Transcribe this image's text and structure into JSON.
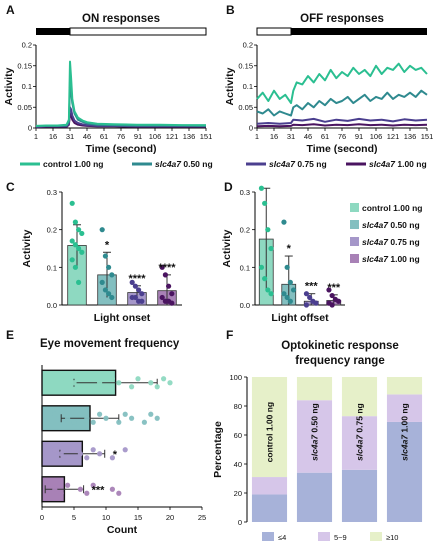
{
  "colors": {
    "control": "#2bbf91",
    "s050": "#2f8a8f",
    "s075": "#4b3f8f",
    "s100": "#4a1460",
    "control_light": "#8ed9c1",
    "s050_light": "#83bfc0",
    "s075_light": "#a597c9",
    "s100_light": "#a881b6",
    "f_low": "#a7b2d9",
    "f_mid": "#d6c6e9",
    "f_high": "#e6f0c9"
  },
  "legend_top": [
    {
      "key": "control",
      "name": "control",
      "dose": "1.00 ng"
    },
    {
      "key": "s050",
      "name": "slc4a7",
      "dose": "0.50 ng"
    },
    {
      "key": "s075",
      "name": "slc4a7",
      "dose": "0.75 ng"
    },
    {
      "key": "s100",
      "name": "slc4a7",
      "dose": "1.00 ng"
    }
  ],
  "legend_d": [
    {
      "key": "control_light",
      "name": "control",
      "dose": "1.00 ng"
    },
    {
      "key": "s050_light",
      "name": "slc4a7",
      "dose": "0.50 ng"
    },
    {
      "key": "s075_light",
      "name": "slc4a7",
      "dose": "0.75 ng"
    },
    {
      "key": "s100_light",
      "name": "slc4a7",
      "dose": "1.00 ng"
    }
  ],
  "chart_data": [
    {
      "panel": "A",
      "type": "line",
      "title": "ON responses",
      "xlabel": "Time (second)",
      "ylabel": "Activity",
      "xticks": [
        1,
        16,
        31,
        46,
        61,
        76,
        91,
        106,
        121,
        136,
        151
      ],
      "xlim": [
        1,
        151
      ],
      "ylim": [
        0,
        0.2
      ],
      "yticks": [
        0,
        0.05,
        0.1,
        0.15,
        0.2
      ],
      "ytick_labels": [
        "0",
        "0.05",
        "0.1",
        "0.15",
        "0.2"
      ],
      "stimulus_bar": {
        "dark_until": 31
      },
      "series": [
        {
          "key": "control",
          "name": "control 1.00 ng",
          "x": [
            1,
            10,
            20,
            28,
            30,
            31,
            32,
            33,
            35,
            38,
            42,
            46,
            55,
            70,
            90,
            110,
            130,
            151
          ],
          "y": [
            0.005,
            0.006,
            0.006,
            0.008,
            0.02,
            0.16,
            0.12,
            0.07,
            0.04,
            0.025,
            0.018,
            0.014,
            0.01,
            0.009,
            0.008,
            0.008,
            0.007,
            0.007
          ]
        },
        {
          "key": "s050",
          "name": "slc4a7 0.50 ng",
          "x": [
            1,
            10,
            20,
            28,
            30,
            31,
            32,
            33,
            35,
            38,
            42,
            46,
            55,
            70,
            90,
            110,
            130,
            151
          ],
          "y": [
            0.004,
            0.005,
            0.005,
            0.006,
            0.015,
            0.1,
            0.09,
            0.06,
            0.035,
            0.02,
            0.015,
            0.011,
            0.008,
            0.007,
            0.006,
            0.006,
            0.006,
            0.005
          ]
        },
        {
          "key": "s075",
          "name": "slc4a7 0.75 ng",
          "x": [
            1,
            10,
            20,
            28,
            30,
            31,
            32,
            33,
            35,
            38,
            42,
            46,
            55,
            70,
            90,
            110,
            130,
            151
          ],
          "y": [
            0.003,
            0.004,
            0.004,
            0.004,
            0.01,
            0.05,
            0.045,
            0.03,
            0.018,
            0.012,
            0.009,
            0.007,
            0.005,
            0.005,
            0.004,
            0.004,
            0.004,
            0.004
          ]
        },
        {
          "key": "s100",
          "name": "slc4a7 1.00 ng",
          "x": [
            1,
            10,
            20,
            28,
            30,
            31,
            32,
            33,
            35,
            38,
            42,
            46,
            55,
            70,
            90,
            110,
            130,
            151
          ],
          "y": [
            0.002,
            0.003,
            0.003,
            0.003,
            0.008,
            0.035,
            0.03,
            0.02,
            0.012,
            0.008,
            0.006,
            0.005,
            0.004,
            0.004,
            0.003,
            0.003,
            0.003,
            0.003
          ]
        }
      ]
    },
    {
      "panel": "B",
      "type": "line",
      "title": "OFF responses",
      "xlabel": "Time (second)",
      "ylabel": "Activity",
      "xticks": [
        1,
        16,
        31,
        46,
        61,
        76,
        91,
        106,
        121,
        136,
        151
      ],
      "xlim": [
        1,
        151
      ],
      "ylim": [
        0,
        0.2
      ],
      "yticks": [
        0,
        0.05,
        0.1,
        0.15,
        0.2
      ],
      "ytick_labels": [
        "0",
        "0.05",
        "0.1",
        "0.15",
        "0.2"
      ],
      "stimulus_bar": {
        "light_until": 31
      },
      "series": [
        {
          "key": "control",
          "name": "control 1.00 ng",
          "x": [
            1,
            6,
            11,
            16,
            21,
            26,
            31,
            33,
            36,
            41,
            46,
            51,
            56,
            61,
            66,
            71,
            76,
            81,
            86,
            91,
            96,
            101,
            106,
            111,
            116,
            121,
            126,
            131,
            136,
            141,
            146,
            151
          ],
          "y": [
            0.07,
            0.085,
            0.065,
            0.09,
            0.07,
            0.08,
            0.06,
            0.09,
            0.11,
            0.105,
            0.125,
            0.11,
            0.13,
            0.115,
            0.14,
            0.12,
            0.135,
            0.125,
            0.145,
            0.13,
            0.14,
            0.125,
            0.15,
            0.13,
            0.145,
            0.14,
            0.155,
            0.135,
            0.15,
            0.14,
            0.145,
            0.13
          ]
        },
        {
          "key": "s050",
          "name": "slc4a7 0.50 ng",
          "x": [
            1,
            6,
            11,
            16,
            21,
            26,
            31,
            33,
            36,
            41,
            46,
            51,
            56,
            61,
            66,
            71,
            76,
            81,
            86,
            91,
            96,
            101,
            106,
            111,
            116,
            121,
            126,
            131,
            136,
            141,
            146,
            151
          ],
          "y": [
            0.04,
            0.035,
            0.045,
            0.03,
            0.04,
            0.035,
            0.03,
            0.05,
            0.055,
            0.045,
            0.06,
            0.05,
            0.065,
            0.055,
            0.07,
            0.06,
            0.065,
            0.075,
            0.06,
            0.07,
            0.08,
            0.065,
            0.075,
            0.07,
            0.085,
            0.07,
            0.08,
            0.075,
            0.085,
            0.075,
            0.09,
            0.08
          ]
        },
        {
          "key": "s075",
          "name": "slc4a7 0.75 ng",
          "x": [
            1,
            11,
            21,
            31,
            33,
            41,
            51,
            61,
            71,
            81,
            91,
            101,
            111,
            121,
            131,
            141,
            151
          ],
          "y": [
            0.01,
            0.012,
            0.01,
            0.012,
            0.02,
            0.018,
            0.022,
            0.015,
            0.02,
            0.017,
            0.022,
            0.018,
            0.02,
            0.016,
            0.021,
            0.018,
            0.02
          ]
        },
        {
          "key": "s100",
          "name": "slc4a7 1.00 ng",
          "x": [
            1,
            11,
            21,
            31,
            33,
            41,
            51,
            61,
            71,
            81,
            91,
            101,
            111,
            121,
            131,
            141,
            151
          ],
          "y": [
            0.004,
            0.005,
            0.004,
            0.005,
            0.008,
            0.007,
            0.009,
            0.006,
            0.008,
            0.007,
            0.009,
            0.007,
            0.008,
            0.006,
            0.008,
            0.007,
            0.008
          ]
        }
      ]
    },
    {
      "panel": "C",
      "type": "bar",
      "xlabel": "Light onset",
      "ylabel": "Activity",
      "ylim": [
        0,
        0.3
      ],
      "yticks": [
        0,
        0.1,
        0.2,
        0.3
      ],
      "ytick_labels": [
        "0.0",
        "0.1",
        "0.2",
        "0.3"
      ],
      "categories": [
        "control 1.00 ng",
        "slc4a7 0.50 ng",
        "slc4a7 0.75 ng",
        "slc4a7 1.00 ng"
      ],
      "values": [
        0.158,
        0.08,
        0.033,
        0.038
      ],
      "errors": [
        0.055,
        0.06,
        0.018,
        0.042
      ],
      "significance": [
        "",
        "*",
        "****",
        "****"
      ],
      "points": [
        [
          0.27,
          0.22,
          0.2,
          0.19,
          0.17,
          0.16,
          0.15,
          0.14,
          0.12,
          0.1,
          0.06
        ],
        [
          0.2,
          0.13,
          0.1,
          0.08,
          0.06,
          0.04,
          0.03,
          0.02
        ],
        [
          0.06,
          0.05,
          0.04,
          0.03,
          0.02,
          0.02,
          0.01,
          0.01
        ],
        [
          0.1,
          0.08,
          0.05,
          0.03,
          0.02,
          0.01,
          0.01,
          0.005
        ]
      ]
    },
    {
      "panel": "D",
      "type": "bar",
      "xlabel": "Light offset",
      "ylabel": "Activity",
      "ylim": [
        0,
        0.3
      ],
      "yticks": [
        0,
        0.1,
        0.2,
        0.3
      ],
      "ytick_labels": [
        "0.0",
        "0.1",
        "0.2",
        "0.3"
      ],
      "categories": [
        "control 1.00 ng",
        "slc4a7 0.50 ng",
        "slc4a7 0.75 ng",
        "slc4a7 1.00 ng"
      ],
      "values": [
        0.175,
        0.055,
        0.01,
        0.012
      ],
      "errors": [
        0.135,
        0.075,
        0.02,
        0.015
      ],
      "significance": [
        "",
        "*",
        "***",
        "***"
      ],
      "points": [
        [
          0.31,
          0.27,
          0.2,
          0.15,
          0.1,
          0.07,
          0.04,
          0.03
        ],
        [
          0.22,
          0.1,
          0.06,
          0.04,
          0.03,
          0.02,
          0.01
        ],
        [
          0.03,
          0.02,
          0.01,
          0.005,
          0.0
        ],
        [
          0.04,
          0.025,
          0.015,
          0.01,
          0.005,
          0.0
        ]
      ]
    },
    {
      "panel": "E",
      "type": "bar",
      "orientation": "horizontal",
      "title": "Eye movement frequency",
      "xlabel": "Count",
      "xlim": [
        0,
        25
      ],
      "xticks": [
        0,
        5,
        10,
        15,
        20,
        25
      ],
      "categories": [
        "control 1.00 ng",
        "slc4a7 0.50 ng",
        "slc4a7 0.75 ng",
        "slc4a7 1.00 ng"
      ],
      "values": [
        11.5,
        7.5,
        6.3,
        3.5
      ],
      "errors": [
        6.5,
        4.5,
        3.5,
        3.0
      ],
      "significance": [
        "",
        "",
        "*",
        "***"
      ],
      "points": [
        [
          3,
          5,
          6,
          8,
          9,
          10,
          11,
          12,
          14,
          15,
          17,
          18,
          19,
          20
        ],
        [
          2,
          4,
          5,
          6,
          7,
          8,
          9,
          10,
          12,
          13,
          14,
          16,
          17,
          18
        ],
        [
          2,
          3,
          4,
          5,
          6,
          7,
          8,
          9,
          11,
          13
        ],
        [
          1,
          2,
          3,
          4,
          6,
          7,
          8,
          11,
          12
        ]
      ]
    },
    {
      "panel": "F",
      "type": "bar",
      "stacked": true,
      "title": "Optokinetic response frequency range",
      "title_lines": [
        "Optokinetic response",
        "frequency range"
      ],
      "ylabel": "Percentage",
      "ylim": [
        0,
        100
      ],
      "yticks": [
        0,
        20,
        40,
        60,
        80,
        100
      ],
      "categories": [
        "control 1.00 ng",
        "slc4a7 0.50 ng",
        "slc4a7 0.75 ng",
        "slc4a7 1.00 ng"
      ],
      "series": [
        {
          "name": "≤4",
          "key": "f_low",
          "values": [
            19,
            34,
            36,
            69
          ]
        },
        {
          "name": "5~9",
          "key": "f_mid",
          "values": [
            12,
            50,
            37,
            19
          ]
        },
        {
          "name": "≥10",
          "key": "f_high",
          "values": [
            69,
            16,
            27,
            12
          ]
        }
      ]
    }
  ]
}
